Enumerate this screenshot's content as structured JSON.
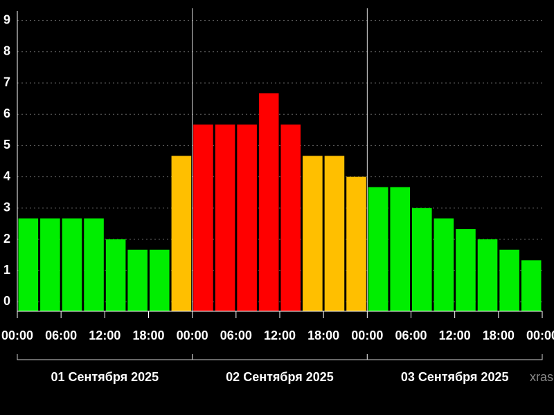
{
  "chart_data": {
    "type": "bar",
    "x": [
      0,
      3,
      6,
      9,
      12,
      15,
      18,
      21,
      24,
      27,
      30,
      33,
      36,
      39,
      42,
      45,
      48,
      51,
      54,
      57,
      60,
      63,
      66,
      69
    ],
    "values": [
      2.67,
      2.67,
      2.67,
      2.67,
      2,
      1.67,
      1.67,
      4.67,
      5.67,
      5.67,
      5.67,
      6.67,
      5.67,
      4.67,
      4.67,
      4,
      3.67,
      3.67,
      3,
      2.67,
      2.33,
      2,
      1.67,
      1.33
    ],
    "colors": [
      "#00ee00",
      "#00ee00",
      "#00ee00",
      "#00ee00",
      "#00ee00",
      "#00ee00",
      "#00ee00",
      "#ffbf00",
      "#ff0000",
      "#ff0000",
      "#ff0000",
      "#ff0000",
      "#ff0000",
      "#ffbf00",
      "#ffbf00",
      "#ffbf00",
      "#00ee00",
      "#00ee00",
      "#00ee00",
      "#00ee00",
      "#00ee00",
      "#00ee00",
      "#00ee00",
      "#00ee00"
    ],
    "xlim": [
      0,
      72
    ],
    "xticks": [
      {
        "value": 0,
        "label": "00:00"
      },
      {
        "value": 6,
        "label": "06:00"
      },
      {
        "value": 12,
        "label": "12:00"
      },
      {
        "value": 18,
        "label": "18:00"
      },
      {
        "value": 24,
        "label": "00:00"
      },
      {
        "value": 30,
        "label": "06:00"
      },
      {
        "value": 36,
        "label": "12:00"
      },
      {
        "value": 42,
        "label": "18:00"
      },
      {
        "value": 48,
        "label": "00:00"
      },
      {
        "value": 54,
        "label": "06:00"
      },
      {
        "value": 60,
        "label": "12:00"
      },
      {
        "value": 66,
        "label": "18:00"
      },
      {
        "value": 72,
        "label": "00:00"
      }
    ],
    "day_labels": [
      "01 Сентября 2025",
      "02 Сентября 2025",
      "03 Сентября 2025"
    ],
    "ylim": [
      -0.3,
      9.3
    ],
    "yticks": [
      0,
      1,
      2,
      3,
      4,
      5,
      6,
      7,
      8,
      9
    ],
    "grid": true,
    "watermark": "xras"
  }
}
